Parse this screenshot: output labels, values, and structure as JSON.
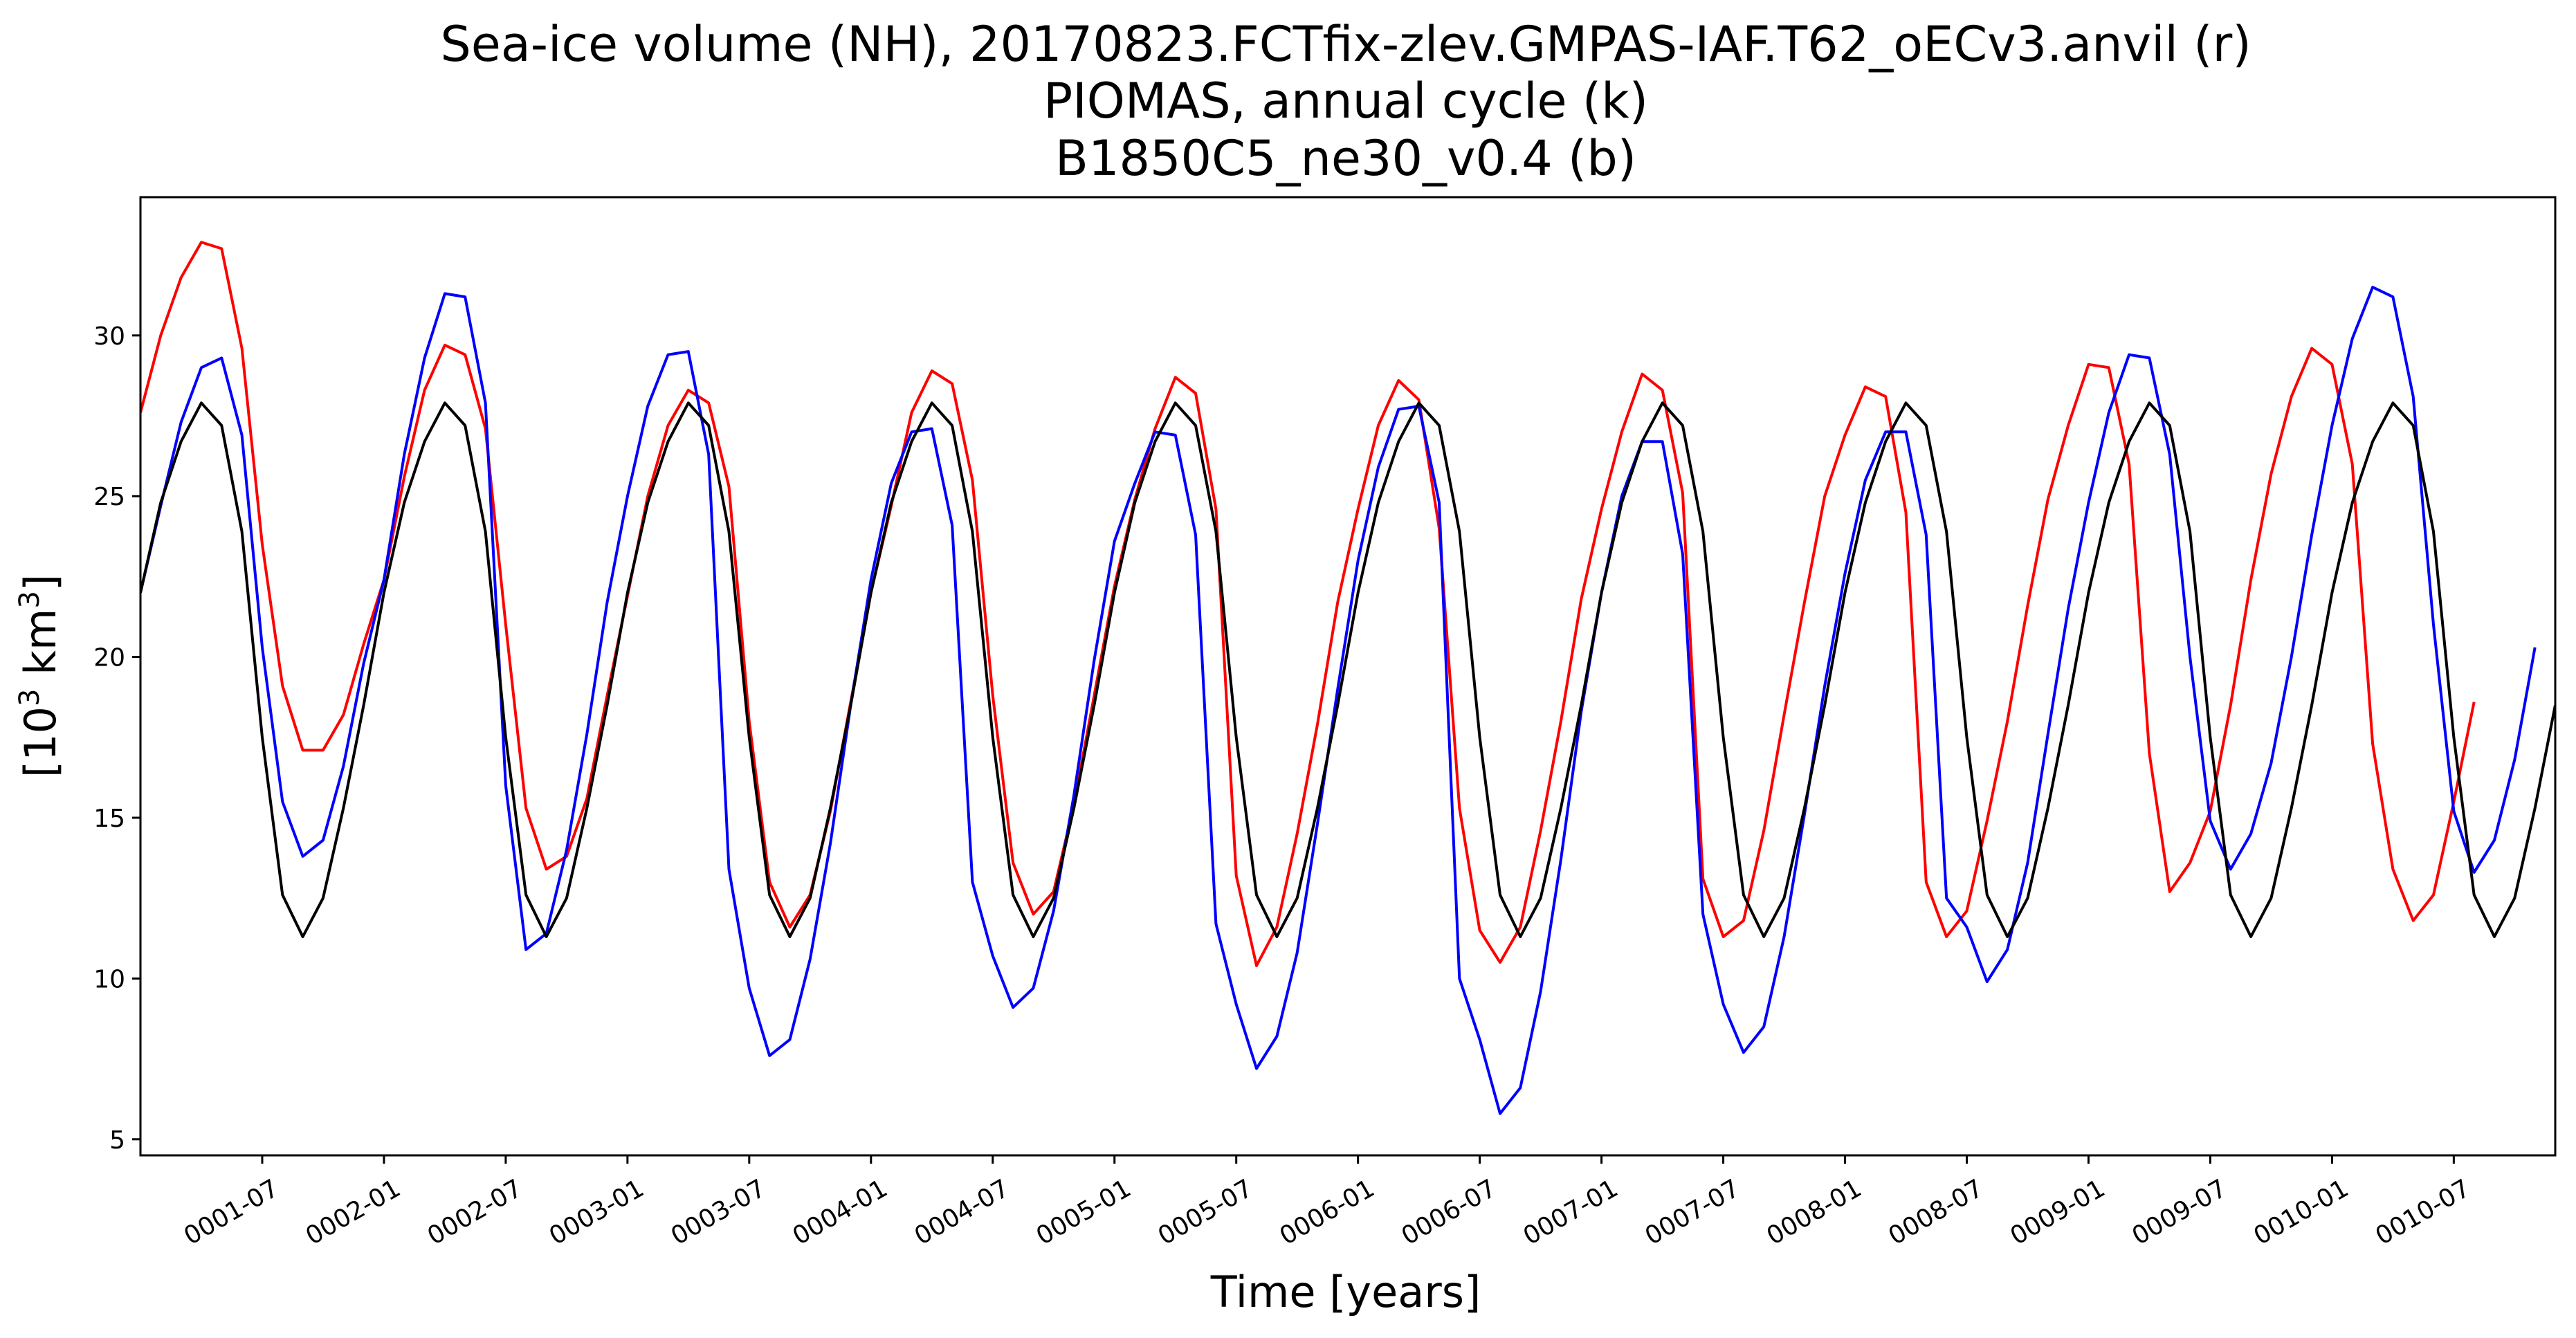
{
  "chart_data": {
    "type": "line",
    "title_lines": [
      "Sea-ice volume (NH), 20170823.FCTfix-zlev.GMPAS-IAF.T62_oECv3.anvil (r)",
      "PIOMAS, annual cycle (k)",
      "B1850C5_ne30_v0.4 (b)"
    ],
    "xlabel": "Time [years]",
    "ylabel_parts": {
      "before": "[10",
      "sup": "3",
      "after": " km",
      "sup2": "3",
      "close": "]"
    },
    "x_unit": "month",
    "x_start_month": "0001-01",
    "xlim": [
      "0001-01",
      "0010-12"
    ],
    "ylim": [
      4.5,
      34.3
    ],
    "yticks": [
      5,
      10,
      15,
      20,
      25,
      30
    ],
    "xticks": [
      "0001-07",
      "0002-01",
      "0002-07",
      "0003-01",
      "0003-07",
      "0004-01",
      "0004-07",
      "0005-01",
      "0005-07",
      "0006-01",
      "0006-07",
      "0007-01",
      "0007-07",
      "0008-01",
      "0008-07",
      "0009-01",
      "0009-07",
      "0010-01",
      "0010-07"
    ],
    "grid": false,
    "legend": "none",
    "series": [
      {
        "color": "#ff0000",
        "values": [
          27.6,
          30.0,
          31.8,
          32.9,
          32.7,
          29.6,
          23.5,
          19.1,
          17.1,
          17.1,
          18.2,
          20.4,
          22.4,
          25.6,
          28.3,
          29.7,
          29.4,
          27.1,
          21.0,
          15.3,
          13.4,
          13.8,
          15.6,
          18.8,
          21.9,
          25.0,
          27.2,
          28.3,
          27.9,
          25.3,
          18.0,
          13.0,
          11.6,
          12.6,
          15.2,
          18.6,
          22.0,
          24.7,
          27.6,
          28.9,
          28.5,
          25.5,
          18.8,
          13.6,
          12.0,
          12.7,
          15.4,
          18.8,
          22.2,
          24.9,
          27.1,
          28.7,
          28.2,
          24.6,
          13.2,
          10.4,
          11.6,
          14.5,
          17.9,
          21.7,
          24.6,
          27.2,
          28.6,
          28.0,
          24.0,
          15.3,
          11.5,
          10.5,
          11.6,
          14.6,
          18.0,
          21.8,
          24.6,
          27.0,
          28.8,
          28.3,
          25.1,
          13.1,
          11.3,
          11.8,
          14.6,
          18.2,
          21.7,
          25.0,
          26.9,
          28.4,
          28.1,
          24.5,
          13.0,
          11.3,
          12.1,
          14.9,
          18.0,
          21.6,
          24.9,
          27.2,
          29.1,
          29.0,
          26.0,
          17.0,
          12.7,
          13.6,
          15.2,
          18.5,
          22.4,
          25.7,
          28.1,
          29.6,
          29.1,
          26.0,
          17.3,
          13.4,
          11.8,
          12.6,
          15.5,
          18.6
        ]
      },
      {
        "color": "#0000ff",
        "values": [
          22.0,
          24.7,
          27.3,
          29.0,
          29.3,
          26.9,
          20.3,
          15.5,
          13.8,
          14.3,
          16.6,
          19.8,
          22.4,
          26.3,
          29.3,
          31.3,
          31.2,
          27.9,
          16.0,
          10.9,
          11.4,
          14.0,
          17.6,
          21.7,
          25.0,
          27.8,
          29.4,
          29.5,
          26.3,
          13.4,
          9.7,
          7.6,
          8.1,
          10.6,
          14.2,
          18.5,
          22.4,
          25.4,
          27.0,
          27.1,
          24.1,
          13.0,
          10.7,
          9.1,
          9.7,
          12.1,
          15.7,
          19.9,
          23.6,
          25.4,
          27.0,
          26.9,
          23.8,
          11.7,
          9.2,
          7.2,
          8.2,
          10.8,
          14.8,
          19.0,
          23.0,
          25.9,
          27.7,
          27.8,
          24.8,
          10.0,
          8.1,
          5.8,
          6.6,
          9.6,
          13.7,
          18.3,
          22.0,
          25.0,
          26.7,
          26.7,
          23.2,
          12.0,
          9.2,
          7.7,
          8.5,
          11.3,
          15.1,
          19.1,
          22.6,
          25.5,
          27.0,
          27.0,
          23.8,
          12.5,
          11.6,
          9.9,
          10.9,
          13.6,
          17.6,
          21.5,
          24.8,
          27.6,
          29.4,
          29.3,
          26.3,
          20.0,
          14.9,
          13.4,
          14.5,
          16.7,
          20.0,
          23.8,
          27.2,
          29.9,
          31.5,
          31.2,
          28.1,
          21.0,
          15.2,
          13.3,
          14.3,
          16.8,
          20.3
        ]
      },
      {
        "color": "#000000",
        "values": [
          22.0,
          24.8,
          26.7,
          27.9,
          27.2,
          23.9,
          17.5,
          12.6,
          11.3,
          12.5,
          15.3,
          18.5,
          22.0,
          24.8,
          26.7,
          27.9,
          27.2,
          23.9,
          17.5,
          12.6,
          11.3,
          12.5,
          15.3,
          18.5,
          22.0,
          24.8,
          26.7,
          27.9,
          27.2,
          23.9,
          17.5,
          12.6,
          11.3,
          12.5,
          15.3,
          18.5,
          22.0,
          24.8,
          26.7,
          27.9,
          27.2,
          23.9,
          17.5,
          12.6,
          11.3,
          12.5,
          15.3,
          18.5,
          22.0,
          24.8,
          26.7,
          27.9,
          27.2,
          23.9,
          17.5,
          12.6,
          11.3,
          12.5,
          15.3,
          18.5,
          22.0,
          24.8,
          26.7,
          27.9,
          27.2,
          23.9,
          17.5,
          12.6,
          11.3,
          12.5,
          15.3,
          18.5,
          22.0,
          24.8,
          26.7,
          27.9,
          27.2,
          23.9,
          17.5,
          12.6,
          11.3,
          12.5,
          15.3,
          18.5,
          22.0,
          24.8,
          26.7,
          27.9,
          27.2,
          23.9,
          17.5,
          12.6,
          11.3,
          12.5,
          15.3,
          18.5,
          22.0,
          24.8,
          26.7,
          27.9,
          27.2,
          23.9,
          17.5,
          12.6,
          11.3,
          12.5,
          15.3,
          18.5,
          22.0,
          24.8,
          26.7,
          27.9,
          27.2,
          23.9,
          17.5,
          12.6,
          11.3,
          12.5,
          15.3,
          18.5
        ]
      }
    ]
  }
}
